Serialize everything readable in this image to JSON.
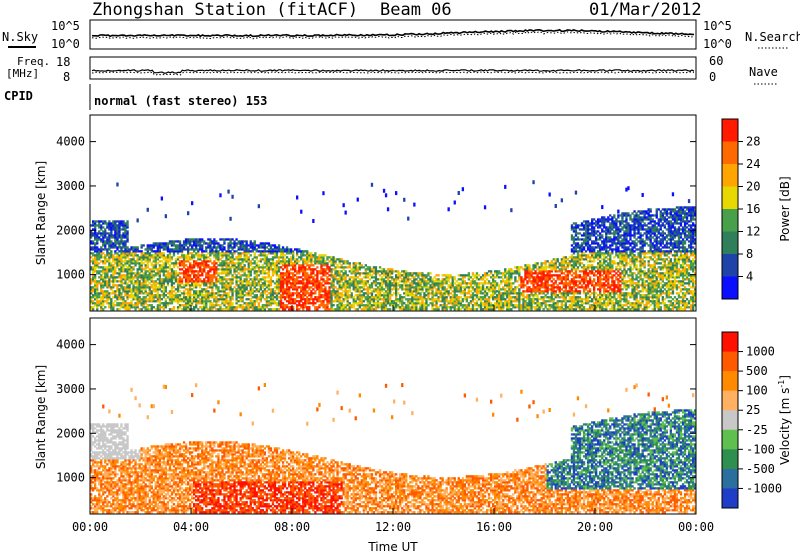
{
  "header": {
    "station": "Zhongshan Station (fitACF)",
    "beam": "Beam 06",
    "date": "01/Mar/2012"
  },
  "top_panels": {
    "nsky_label": "N.Sky",
    "nsearch_label": "N.Search",
    "noise_ticks_left": [
      "10^5",
      "10^0"
    ],
    "noise_ticks_right": [
      "10^5",
      "10^0"
    ],
    "freq_label_1": "Freq.",
    "freq_label_2": "[MHz]",
    "freq_ticks": [
      "18",
      "8"
    ],
    "nave_label": "Nave",
    "nave_ticks": [
      "60",
      "0"
    ],
    "cpid_label": "CPID",
    "cpid_text": "normal (fast stereo) 153"
  },
  "colors": {
    "power_scale": [
      "#0a10ff",
      "#1f43a8",
      "#2f7f5a",
      "#49a04a",
      "#e6d800",
      "#ffa500",
      "#ff6a00",
      "#ff1a00"
    ],
    "velocity_scale": [
      "#1e3ec8",
      "#2a6f9e",
      "#2f8f4f",
      "#5fc050",
      "#c8c8c8",
      "#ffb060",
      "#ff8a00",
      "#ff5a00",
      "#ff1000"
    ]
  },
  "chart_data": [
    {
      "type": "heatmap",
      "title": "Power",
      "ylabel": "Slant Range [km]",
      "xlabel": "",
      "xticks": [
        "00:00",
        "04:00",
        "08:00",
        "12:00",
        "16:00",
        "20:00",
        "00:00"
      ],
      "yticks": [
        "1000",
        "2000",
        "3000",
        "4000"
      ],
      "ylim": [
        180,
        4600
      ],
      "xlim_hours": [
        0,
        24
      ],
      "colorbar_label": "Power [dB]",
      "colorbar_ticks": [
        "28",
        "24",
        "20",
        "16",
        "12",
        "8",
        "4"
      ],
      "colorbar_range": [
        0,
        32
      ],
      "grid": false
    },
    {
      "type": "heatmap",
      "title": "Velocity",
      "ylabel": "Slant Range [km]",
      "xlabel": "Time UT",
      "xticks": [
        "00:00",
        "04:00",
        "08:00",
        "12:00",
        "16:00",
        "20:00",
        "00:00"
      ],
      "yticks": [
        "1000",
        "2000",
        "3000",
        "4000"
      ],
      "ylim": [
        180,
        4600
      ],
      "xlim_hours": [
        0,
        24
      ],
      "colorbar_label": "Velocity [m s^-1]",
      "colorbar_ticks": [
        "1000",
        "500",
        "100",
        "25",
        "-25",
        "-100",
        "-500",
        "-1000"
      ],
      "grid": false
    }
  ]
}
